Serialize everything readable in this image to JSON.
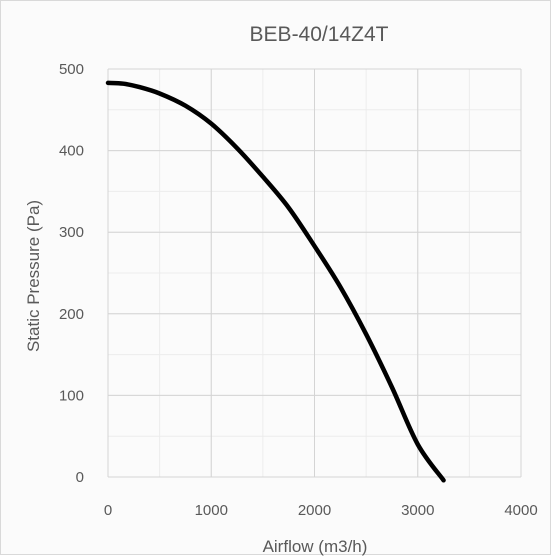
{
  "chart_data": {
    "type": "line",
    "title": "BEB-40/14Z4T",
    "xlabel": "Airflow (m3/h)",
    "ylabel": "Static Pressure (Pa)",
    "xlim": [
      0,
      4000
    ],
    "ylim": [
      0,
      500
    ],
    "x_ticks": [
      "0",
      "1000",
      "2000",
      "3000",
      "4000"
    ],
    "y_ticks": [
      "0",
      "100",
      "200",
      "300",
      "400",
      "500"
    ],
    "grid": true,
    "legend": "none",
    "line_color": "#000000",
    "series": [
      {
        "x": [
          0,
          150,
          300,
          500,
          750,
          1000,
          1250,
          1500,
          1750,
          2000,
          2250,
          2500,
          2750,
          3000,
          3250
        ],
        "y": [
          483,
          482,
          478,
          470,
          455,
          433,
          403,
          368,
          330,
          283,
          233,
          175,
          110,
          40,
          -4
        ]
      }
    ]
  }
}
